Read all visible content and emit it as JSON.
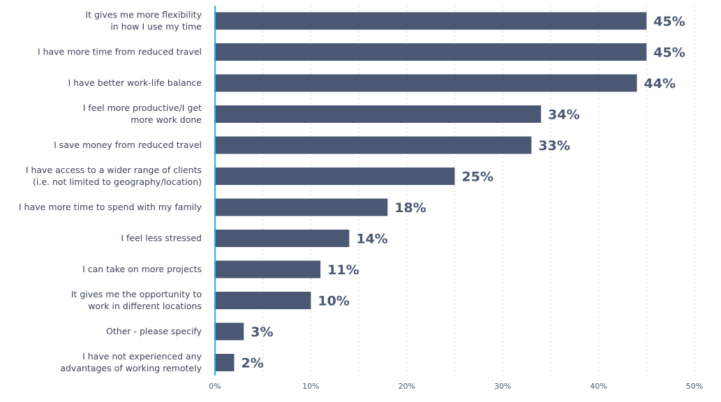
{
  "chart_data": {
    "type": "bar",
    "orientation": "horizontal",
    "categories": [
      [
        "It gives me more flexibility",
        "in how I use my time"
      ],
      [
        "I have more time from reduced travel"
      ],
      [
        "I have better work-life balance"
      ],
      [
        "I feel more productive/I get",
        "more work done"
      ],
      [
        "I save money from reduced travel"
      ],
      [
        "I have access to a wider range of clients",
        "(i.e. not limited to geography/location)"
      ],
      [
        "I have more time to spend with my family"
      ],
      [
        "I feel less stressed"
      ],
      [
        "I can take on more projects"
      ],
      [
        "It gives me the opportunity to",
        "work in different locations"
      ],
      [
        "Other - please specify"
      ],
      [
        "I have not experienced any",
        "advantages of working remotely"
      ]
    ],
    "values": [
      45,
      45,
      44,
      34,
      33,
      25,
      18,
      14,
      11,
      10,
      3,
      2
    ],
    "value_labels": [
      "45%",
      "45%",
      "44%",
      "34%",
      "33%",
      "25%",
      "18%",
      "14%",
      "11%",
      "10%",
      "3%",
      "2%"
    ],
    "xlim": [
      0,
      50
    ],
    "xticks": [
      "0%",
      "10%",
      "20%",
      "30%",
      "40%",
      "50%"
    ],
    "grid": true,
    "title": "",
    "xlabel": "",
    "ylabel": "",
    "colors": {
      "bar": "#4a5873",
      "axis": "#1ab3e6",
      "grid": "#dddddd"
    }
  }
}
